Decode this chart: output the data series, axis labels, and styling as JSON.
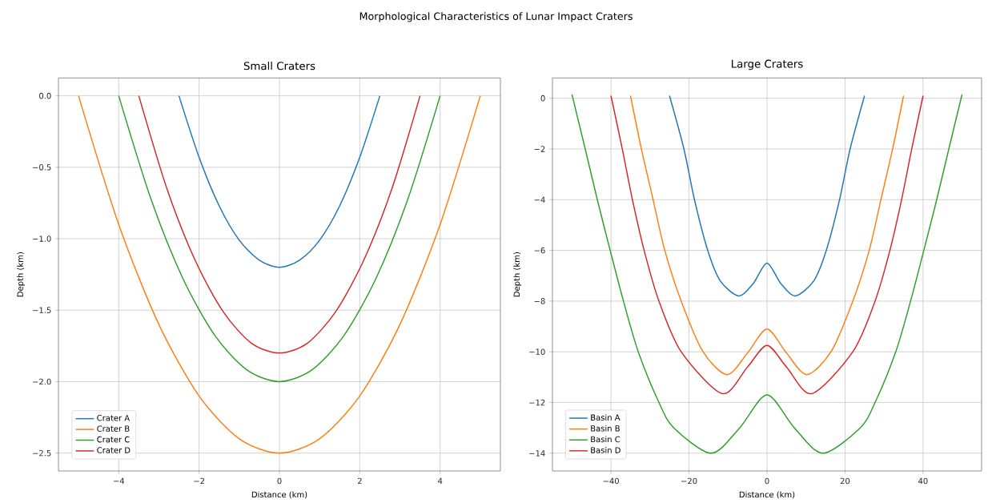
{
  "chart_data": [
    {
      "type": "line",
      "title": "Small Craters",
      "xlabel": "Distance (km)",
      "ylabel": "Depth (km)",
      "annotations": [
        "Morphological Characteristics of Lunar Impact Craters"
      ],
      "xlim": [
        -5.5,
        5.5
      ],
      "ylim": [
        -2.625,
        0.125
      ],
      "xticks": [
        {
          "value": -4,
          "label": "−4"
        },
        {
          "value": -2,
          "label": "−2"
        },
        0,
        2,
        4
      ],
      "yticks": [
        {
          "value": 0,
          "label": "0.0"
        },
        {
          "value": -0.5,
          "label": "−0.5"
        },
        {
          "value": -1,
          "label": "−1.0"
        },
        {
          "value": -1.5,
          "label": "−1.5"
        },
        {
          "value": -2,
          "label": "−2.0"
        },
        {
          "value": -2.5,
          "label": "−2.5"
        }
      ],
      "grid": true,
      "legend": "bottom left",
      "series": [
        {
          "name": "Crater A",
          "color": "#1f77b4",
          "x": [
            -2.5,
            -2,
            -1.5,
            -1,
            -0.5,
            0,
            0.5,
            1,
            1.5,
            2,
            2.5
          ],
          "values": [
            0,
            -0.43,
            -0.77,
            -1.01,
            -1.15,
            -1.2,
            -1.15,
            -1.01,
            -0.77,
            -0.43,
            0
          ]
        },
        {
          "name": "Crater B",
          "color": "#ff7f0e",
          "x": [
            -5,
            -4,
            -3,
            -2,
            -1,
            0,
            1,
            2,
            3,
            4,
            5
          ],
          "values": [
            0,
            -0.9,
            -1.6,
            -2.1,
            -2.4,
            -2.5,
            -2.4,
            -2.1,
            -1.6,
            -0.9,
            0
          ]
        },
        {
          "name": "Crater C",
          "color": "#2ca02c",
          "x": [
            -4,
            -3.2,
            -2.4,
            -1.6,
            -0.8,
            0,
            0.8,
            1.6,
            2.4,
            3.2,
            4
          ],
          "values": [
            0,
            -0.72,
            -1.28,
            -1.68,
            -1.92,
            -2,
            -1.92,
            -1.68,
            -1.28,
            -0.72,
            0
          ]
        },
        {
          "name": "Crater D",
          "color": "#d62728",
          "x": [
            -3.5,
            -2.8,
            -2.1,
            -1.4,
            -0.7,
            0,
            0.7,
            1.4,
            2.1,
            2.8,
            3.5
          ],
          "values": [
            0,
            -0.65,
            -1.15,
            -1.51,
            -1.73,
            -1.8,
            -1.73,
            -1.51,
            -1.15,
            -0.65,
            0
          ]
        }
      ]
    },
    {
      "type": "line",
      "title": "Large Craters",
      "xlabel": "Distance (km)",
      "ylabel": "Depth (km)",
      "xlim": [
        -55,
        55
      ],
      "ylim": [
        -14.7,
        0.8
      ],
      "xticks": [
        {
          "value": -40,
          "label": "−40"
        },
        {
          "value": -20,
          "label": "−20"
        },
        0,
        20,
        40
      ],
      "yticks": [
        0,
        {
          "value": -2,
          "label": "−2"
        },
        {
          "value": -4,
          "label": "−4"
        },
        {
          "value": -6,
          "label": "−6"
        },
        {
          "value": -8,
          "label": "−8"
        },
        {
          "value": -10,
          "label": "−10"
        },
        {
          "value": -12,
          "label": "−12"
        },
        {
          "value": -14,
          "label": "−14"
        }
      ],
      "grid": true,
      "legend": "bottom left",
      "series": [
        {
          "name": "Basin A",
          "color": "#1f77b4",
          "x": [
            -25,
            -21.3,
            -18.6,
            -15.2,
            -12,
            -7.2,
            -3.5,
            0,
            3.5,
            7.2,
            12,
            15.2,
            18.6,
            21.3,
            25
          ],
          "values": [
            0.1,
            -2,
            -4,
            -6,
            -7.2,
            -7.8,
            -7.3,
            -6.5,
            -7.3,
            -7.8,
            -7.2,
            -6,
            -4,
            -2,
            0.1
          ]
        },
        {
          "name": "Basin B",
          "color": "#ff7f0e",
          "x": [
            -35,
            -32.2,
            -29.2,
            -26.2,
            -22,
            -16.4,
            -10.2,
            -5,
            0,
            5,
            10.2,
            16.4,
            22,
            26.2,
            29.2,
            32.2,
            35
          ],
          "values": [
            0.1,
            -2,
            -4,
            -6,
            -8,
            -10,
            -10.9,
            -10.05,
            -9.1,
            -10.05,
            -10.9,
            -10,
            -8,
            -6,
            -4,
            -2,
            0.1
          ]
        },
        {
          "name": "Basin C",
          "color": "#2ca02c",
          "x": [
            -50,
            -46.6,
            -43.5,
            -40.2,
            -36.8,
            -33,
            -27.7,
            -23.9,
            -14.3,
            -7,
            0,
            7,
            14.3,
            23.9,
            27.7,
            33,
            36.8,
            40.2,
            43.5,
            46.6,
            50
          ],
          "values": [
            0.15,
            -2,
            -4,
            -6,
            -8,
            -10,
            -12,
            -13,
            -14,
            -13,
            -11.7,
            -13,
            -14,
            -13,
            -12,
            -10,
            -8,
            -6,
            -4,
            -2,
            0.15
          ]
        },
        {
          "name": "Basin D",
          "color": "#d62728",
          "x": [
            -40,
            -37.1,
            -34.5,
            -31.5,
            -27.7,
            -22,
            -11.5,
            -5,
            0,
            5,
            11.5,
            22,
            27.7,
            31.5,
            34.5,
            37.1,
            40
          ],
          "values": [
            0.1,
            -2,
            -4,
            -6,
            -8,
            -10,
            -11.65,
            -10.6,
            -9.75,
            -10.6,
            -11.65,
            -10,
            -8,
            -6,
            -4,
            -2,
            0.1
          ]
        }
      ]
    }
  ]
}
